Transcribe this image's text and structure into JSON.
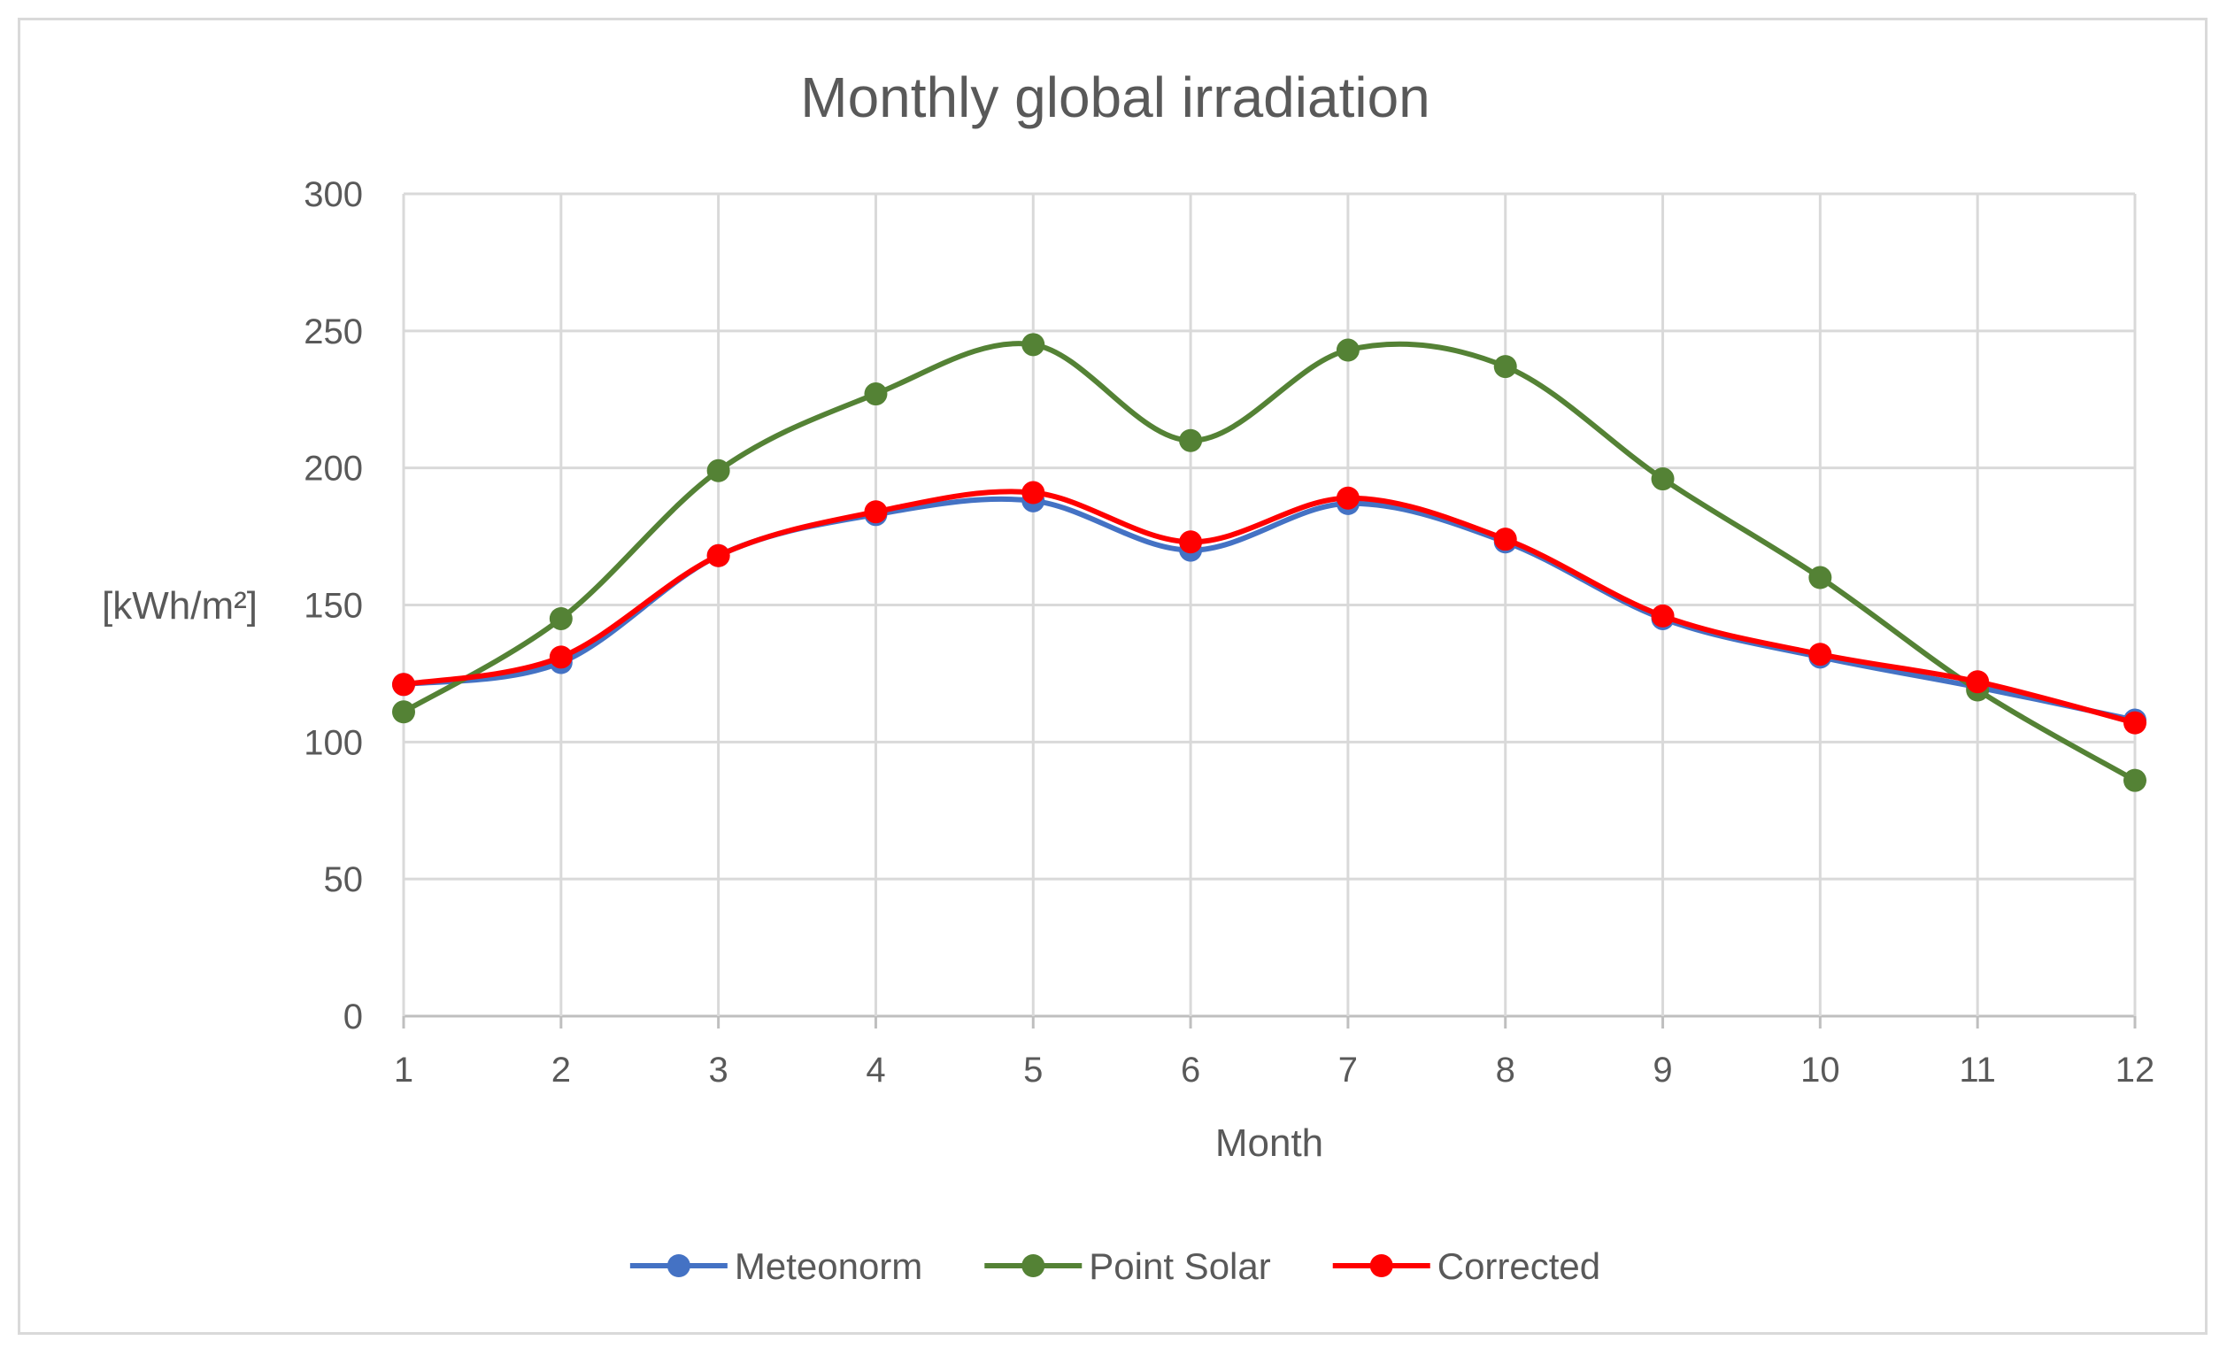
{
  "chart_data": {
    "type": "line",
    "title": "Monthly global irradiation",
    "xlabel": "Month",
    "ylabel": "[kWh/m²]",
    "x": [
      1,
      2,
      3,
      4,
      5,
      6,
      7,
      8,
      9,
      10,
      11,
      12
    ],
    "xlim": [
      1,
      12
    ],
    "ylim": [
      0,
      300
    ],
    "yticks": [
      0,
      50,
      100,
      150,
      200,
      250,
      300
    ],
    "grid": true,
    "smooth": true,
    "legend_position": "bottom",
    "series": [
      {
        "name": "Meteonorm",
        "color": "#4472c4",
        "values": [
          121,
          129,
          168,
          183,
          188,
          170,
          187,
          173,
          145,
          131,
          120,
          108
        ]
      },
      {
        "name": "Point Solar",
        "color": "#548235",
        "values": [
          111,
          145,
          199,
          227,
          245,
          210,
          243,
          237,
          196,
          160,
          119,
          86
        ]
      },
      {
        "name": "Corrected",
        "color": "#ff0000",
        "values": [
          121,
          131,
          168,
          184,
          191,
          173,
          189,
          174,
          146,
          132,
          122,
          107
        ]
      }
    ]
  }
}
